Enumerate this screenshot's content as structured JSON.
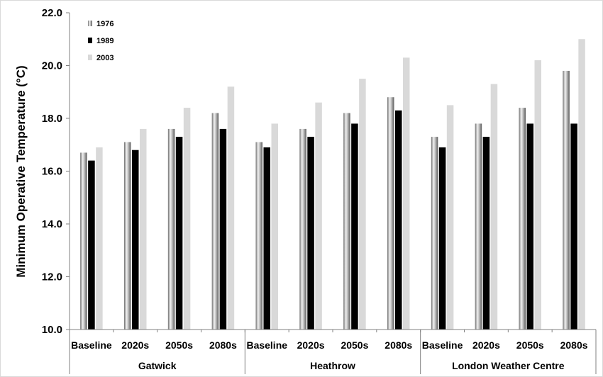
{
  "chart_data": {
    "type": "bar",
    "title": "",
    "ylabel": "Minimum Operative Temperature (°C)",
    "ylim": [
      10.0,
      22.0
    ],
    "yticks": [
      "10.0",
      "12.0",
      "14.0",
      "16.0",
      "18.0",
      "20.0",
      "22.0"
    ],
    "grid": false,
    "legend_position": "top-left",
    "groups": [
      "Gatwick",
      "Heathrow",
      "London Weather Centre"
    ],
    "categories": [
      "Baseline",
      "2020s",
      "2050s",
      "2080s",
      "Baseline",
      "2020s",
      "2050s",
      "2080s",
      "Baseline",
      "2020s",
      "2050s",
      "2080s"
    ],
    "series": [
      {
        "name": "1976",
        "color": "#8c8c8c",
        "values": [
          16.7,
          17.1,
          17.6,
          18.2,
          17.1,
          17.6,
          18.2,
          18.8,
          17.3,
          17.8,
          18.4,
          19.8
        ]
      },
      {
        "name": "1989",
        "color": "#000000",
        "values": [
          16.4,
          16.8,
          17.3,
          17.6,
          16.9,
          17.3,
          17.8,
          18.3,
          16.9,
          17.3,
          17.8,
          17.8
        ]
      },
      {
        "name": "2003",
        "color": "#d9d9d9",
        "values": [
          16.9,
          17.6,
          18.4,
          19.2,
          17.8,
          18.6,
          19.5,
          20.3,
          18.5,
          19.3,
          20.2,
          21.0
        ]
      }
    ]
  }
}
